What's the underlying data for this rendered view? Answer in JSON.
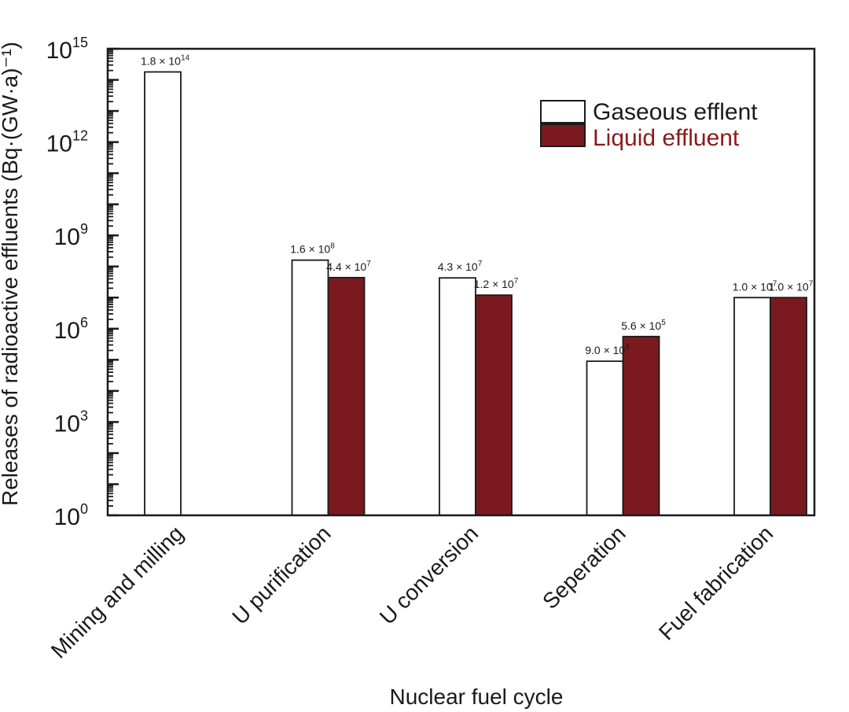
{
  "chart_data": {
    "type": "bar",
    "title": "",
    "xlabel": "Nuclear fuel cycle",
    "ylabel": "Releases of radioactive effluents (Bq·(GW·a)⁻¹)",
    "yscale": "log",
    "ylim": [
      1,
      1000000000000000.0
    ],
    "yticks": [
      {
        "base": "10",
        "exp": "0",
        "value": 1
      },
      {
        "base": "10",
        "exp": "3",
        "value": 1000
      },
      {
        "base": "10",
        "exp": "6",
        "value": 1000000
      },
      {
        "base": "10",
        "exp": "9",
        "value": 1000000000
      },
      {
        "base": "10",
        "exp": "12",
        "value": 1000000000000
      },
      {
        "base": "10",
        "exp": "15",
        "value": 1000000000000000
      }
    ],
    "categories": [
      "Mining and milling",
      "U purification",
      "U conversion",
      "Seperation",
      "Fuel fabrication"
    ],
    "series": [
      {
        "name": "Gaseous efflent",
        "color": "#ffffff",
        "values": [
          180000000000000.0,
          160000000.0,
          43000000.0,
          90000.0,
          10000000.0
        ],
        "labels": [
          {
            "mant": "1.8 × 10",
            "exp": "14"
          },
          {
            "mant": "1.6 × 10",
            "exp": "8"
          },
          {
            "mant": "4.3 × 10",
            "exp": "7"
          },
          {
            "mant": "9.0 × 10",
            "exp": "4"
          },
          {
            "mant": "1.0 × 10",
            "exp": "7"
          }
        ]
      },
      {
        "name": "Liquid effluent",
        "color": "#7b1a1e",
        "values": [
          null,
          44000000.0,
          12000000.0,
          560000.0,
          10000000.0
        ],
        "labels": [
          null,
          {
            "mant": "4.4 × 10",
            "exp": "7"
          },
          {
            "mant": "1.2 × 10",
            "exp": "7"
          },
          {
            "mant": "5.6 × 10",
            "exp": "5"
          },
          {
            "mant": "1.0 × 10",
            "exp": "7"
          }
        ]
      }
    ],
    "legend": {
      "placement": "top-right",
      "liquid_text_color": "#8b1a1a"
    },
    "grid": false
  }
}
